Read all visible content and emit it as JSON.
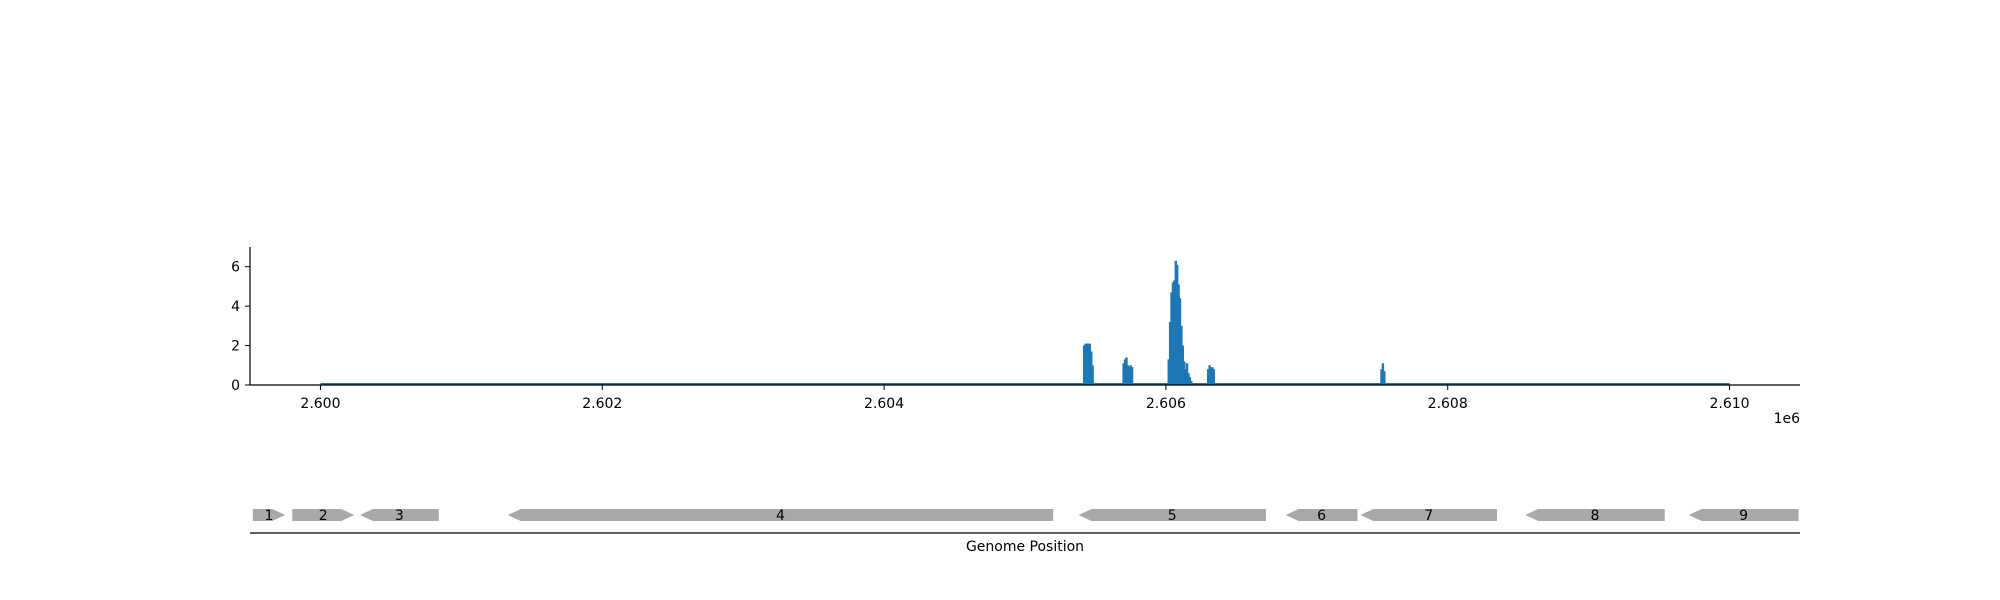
{
  "chart_data": [
    {
      "type": "area",
      "title": "",
      "xlabel": "",
      "ylabel": "",
      "x_offset_label": "1e6",
      "xlim": [
        2599500,
        2610500
      ],
      "ylim": [
        0,
        7
      ],
      "xticks": [
        2600000,
        2602000,
        2604000,
        2606000,
        2608000,
        2610000
      ],
      "xtick_labels": [
        "2.600",
        "2.602",
        "2.604",
        "2.606",
        "2.608",
        "2.610"
      ],
      "yticks": [
        0,
        2,
        4,
        6
      ],
      "ytick_labels": [
        "0",
        "2",
        "4",
        "6"
      ],
      "grid": false,
      "color": "#1f77b4",
      "baseline_range": [
        2600000,
        2610000
      ],
      "series": [
        {
          "x": [
            2605420,
            2605430,
            2605440,
            2605450,
            2605460,
            2605470,
            2605480,
            2605700,
            2605710,
            2605720,
            2605730,
            2605740,
            2605750,
            2605760,
            2606020,
            2606030,
            2606040,
            2606050,
            2606060,
            2606070,
            2606080,
            2606090,
            2606100,
            2606110,
            2606120,
            2606130,
            2606140,
            2606150,
            2606160,
            2606170,
            2606180,
            2606300,
            2606310,
            2606320,
            2606330,
            2606340,
            2607530,
            2607540,
            2607550
          ],
          "values": [
            2.0,
            2.1,
            2.1,
            2.1,
            2.1,
            1.7,
            1.0,
            1.1,
            1.3,
            1.4,
            1.0,
            0.9,
            1.0,
            0.9,
            1.3,
            3.2,
            4.7,
            5.2,
            5.3,
            6.3,
            6.1,
            5.1,
            4.4,
            3.0,
            2.0,
            1.2,
            0.8,
            1.1,
            0.6,
            0.4,
            0.2,
            0.8,
            1.0,
            0.9,
            0.9,
            0.8,
            0.8,
            1.1,
            0.7
          ]
        }
      ]
    },
    {
      "type": "gene-track",
      "xlabel": "Genome Position",
      "xlim": [
        2599500,
        2610500
      ],
      "color": "#a9a9a9",
      "genes": [
        {
          "label": "1",
          "start": 2599520,
          "end": 2599750,
          "strand": "+"
        },
        {
          "label": "2",
          "start": 2599800,
          "end": 2600240,
          "strand": "+"
        },
        {
          "label": "3",
          "start": 2600280,
          "end": 2600840,
          "strand": "-"
        },
        {
          "label": "4",
          "start": 2601330,
          "end": 2605200,
          "strand": "-"
        },
        {
          "label": "5",
          "start": 2605380,
          "end": 2606710,
          "strand": "-"
        },
        {
          "label": "6",
          "start": 2606850,
          "end": 2607360,
          "strand": "-"
        },
        {
          "label": "7",
          "start": 2607380,
          "end": 2608350,
          "strand": "-"
        },
        {
          "label": "8",
          "start": 2608550,
          "end": 2609540,
          "strand": "-"
        },
        {
          "label": "9",
          "start": 2609710,
          "end": 2610490,
          "strand": "-"
        }
      ]
    }
  ]
}
